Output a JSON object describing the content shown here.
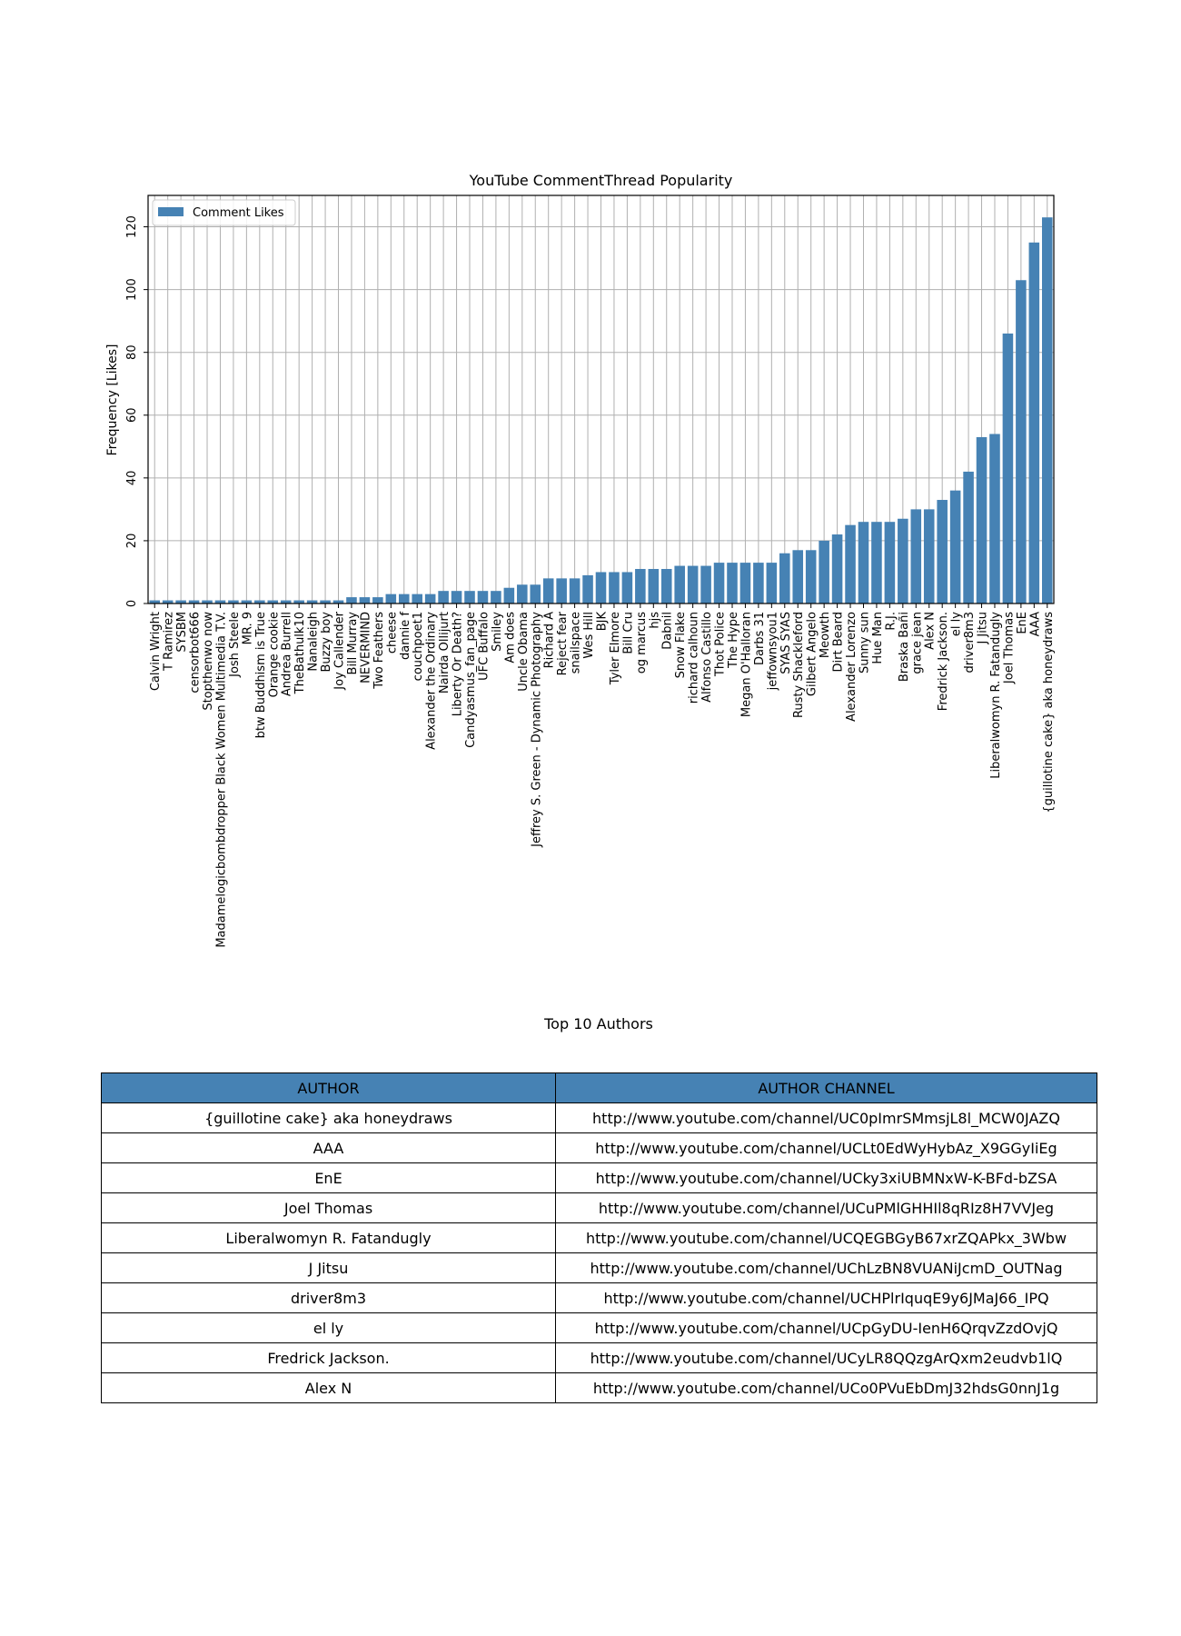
{
  "chart_data": {
    "type": "bar",
    "title": "YouTube CommentThread Popularity",
    "xlabel": "",
    "ylabel": "Frequency [Likes]",
    "ylim": [
      0,
      130
    ],
    "yticks": [
      0,
      20,
      40,
      60,
      80,
      100,
      120
    ],
    "grid": true,
    "legend": "top-left",
    "bar_color": "#4682b4",
    "series": [
      {
        "name": "Comment Likes"
      }
    ],
    "categories": [
      "Calvin Wright",
      "T Ramirez",
      "SYSBM",
      "censorbot666",
      "Stopthenwo now",
      "Madamelogicbombdropper Black Women Multimedia T.V.",
      "Josh Steele",
      "MR. 9",
      "btw Buddhism is True",
      "Orange cookie",
      "Andrea Burrell",
      "TheBathulk10",
      "Nanaleigh",
      "Buzzy boy",
      "Joy Callender",
      "Bill Murray",
      "NEVERMIND",
      "Two Feathers",
      "cheese",
      "dannie f",
      "couchpoet1",
      "Alexander the Ordinary",
      "Nairda Ollijurt",
      "Liberty Or Death?",
      "Candyasmus_fan_page",
      "UFC Buffalo",
      "Smiley",
      "Am does",
      "Uncle Obama",
      "Jeffrey S. Green - Dynamic Photography",
      "Richard A",
      "Reject fear",
      "snailspace",
      "Wes Hill",
      "BJK",
      "Tyler Elmore",
      "Bill Cru",
      "og marcus",
      "hjs",
      "Dabnil",
      "Snow Flake",
      "richard calhoun",
      "Alfonso Castillo",
      "Thot Police",
      "The Hype",
      "Megan O'Halloran",
      "Darbs 31",
      "jeffownsyou1",
      "SYAS SYAS",
      "Rusty Shackleford",
      "Gilbert Angelo",
      "Meowth",
      "Dirt Beard",
      "Alexander Lorenzo",
      "Sunny sun",
      "Hue Man",
      "R.J.",
      "Braska Bañi",
      "grace jean",
      "Alex N",
      "Fredrick Jackson.",
      "el ly",
      "driver8m3",
      "J Jitsu",
      "Liberalwomyn R. Fatandugly",
      "Joel Thomas",
      "EnE",
      "AAA",
      "{guillotine cake} aka honeydraws"
    ],
    "values": [
      1,
      1,
      1,
      1,
      1,
      1,
      1,
      1,
      1,
      1,
      1,
      1,
      1,
      1,
      1,
      2,
      2,
      2,
      3,
      3,
      3,
      3,
      4,
      4,
      4,
      4,
      4,
      5,
      6,
      6,
      8,
      8,
      8,
      9,
      10,
      10,
      10,
      11,
      11,
      11,
      12,
      12,
      12,
      13,
      13,
      13,
      13,
      13,
      16,
      17,
      17,
      20,
      22,
      25,
      26,
      26,
      26,
      27,
      30,
      30,
      33,
      36,
      42,
      53,
      54,
      86,
      103,
      115,
      123
    ]
  },
  "table": {
    "title": "Top 10 Authors",
    "header_color": "#4682b4",
    "columns": [
      "AUTHOR",
      "AUTHOR CHANNEL"
    ],
    "rows": [
      [
        "{guillotine cake} aka honeydraws",
        "http://www.youtube.com/channel/UC0pImrSMmsjL8l_MCW0JAZQ"
      ],
      [
        "AAA",
        "http://www.youtube.com/channel/UCLt0EdWyHybAz_X9GGyIiEg"
      ],
      [
        "EnE",
        "http://www.youtube.com/channel/UCky3xiUBMNxW-K-BFd-bZSA"
      ],
      [
        "Joel Thomas",
        "http://www.youtube.com/channel/UCuPMlGHHIl8qRIz8H7VVJeg"
      ],
      [
        "Liberalwomyn R. Fatandugly",
        "http://www.youtube.com/channel/UCQEGBGyB67xrZQAPkx_3Wbw"
      ],
      [
        "J Jitsu",
        "http://www.youtube.com/channel/UChLzBN8VUANiJcmD_OUTNag"
      ],
      [
        "driver8m3",
        "http://www.youtube.com/channel/UCHPlrIquqE9y6JMaJ66_IPQ"
      ],
      [
        "el ly",
        "http://www.youtube.com/channel/UCpGyDU-IenH6QrqvZzdOvjQ"
      ],
      [
        "Fredrick Jackson.",
        "http://www.youtube.com/channel/UCyLR8QQzgArQxm2eudvb1lQ"
      ],
      [
        "Alex N",
        "http://www.youtube.com/channel/UCo0PVuEbDmJ32hdsG0nnJ1g"
      ]
    ]
  }
}
